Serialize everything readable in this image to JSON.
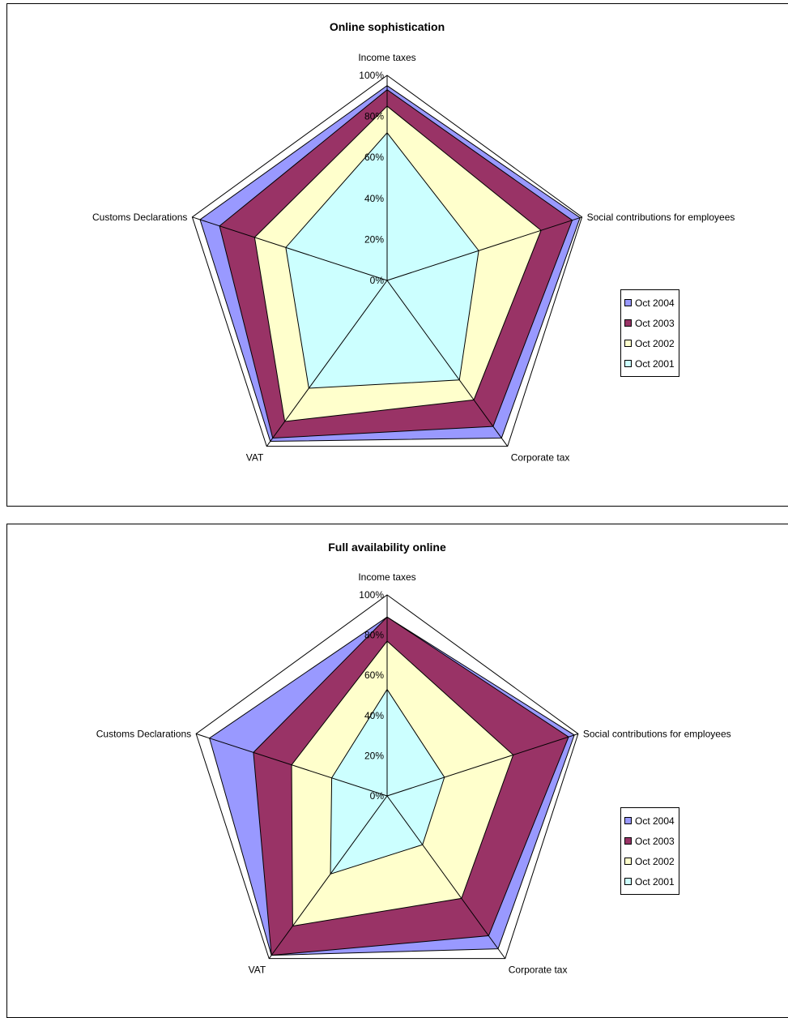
{
  "chart_data": [
    {
      "type": "radar",
      "title": "Online sophistication",
      "categories": [
        "Income taxes",
        "Social contributions for employees",
        "Corporate tax",
        "VAT",
        "Customs Declarations"
      ],
      "tick_labels": [
        "0%",
        "20%",
        "40%",
        "60%",
        "80%",
        "100%"
      ],
      "rlim": [
        0,
        100
      ],
      "grid": false,
      "legend_position": "right",
      "series": [
        {
          "name": "Oct 2004",
          "color": "#9999FF",
          "values": [
            95,
            99,
            95,
            97,
            96
          ]
        },
        {
          "name": "Oct 2003",
          "color": "#993366",
          "values": [
            93,
            95,
            88,
            95,
            86
          ]
        },
        {
          "name": "Oct 2002",
          "color": "#FFFFCC",
          "values": [
            85,
            79,
            72,
            85,
            68
          ]
        },
        {
          "name": "Oct 2001",
          "color": "#CCFFFF",
          "values": [
            72,
            47,
            60,
            65,
            52
          ]
        }
      ]
    },
    {
      "type": "radar",
      "title": "Full availability online",
      "categories": [
        "Income taxes",
        "Social contributions for employees",
        "Corporate tax",
        "VAT",
        "Customs Declarations"
      ],
      "tick_labels": [
        "0%",
        "20%",
        "40%",
        "60%",
        "80%",
        "100%"
      ],
      "rlim": [
        0,
        100
      ],
      "grid": false,
      "legend_position": "right",
      "series": [
        {
          "name": "Oct 2004",
          "color": "#9999FF",
          "values": [
            89,
            98,
            94,
            98,
            93
          ]
        },
        {
          "name": "Oct 2003",
          "color": "#993366",
          "values": [
            89,
            95,
            86,
            98,
            70
          ]
        },
        {
          "name": "Oct 2002",
          "color": "#FFFFCC",
          "values": [
            77,
            66,
            63,
            80,
            50
          ]
        },
        {
          "name": "Oct 2001",
          "color": "#CCFFFF",
          "values": [
            53,
            30,
            30,
            48,
            29
          ]
        }
      ]
    }
  ]
}
